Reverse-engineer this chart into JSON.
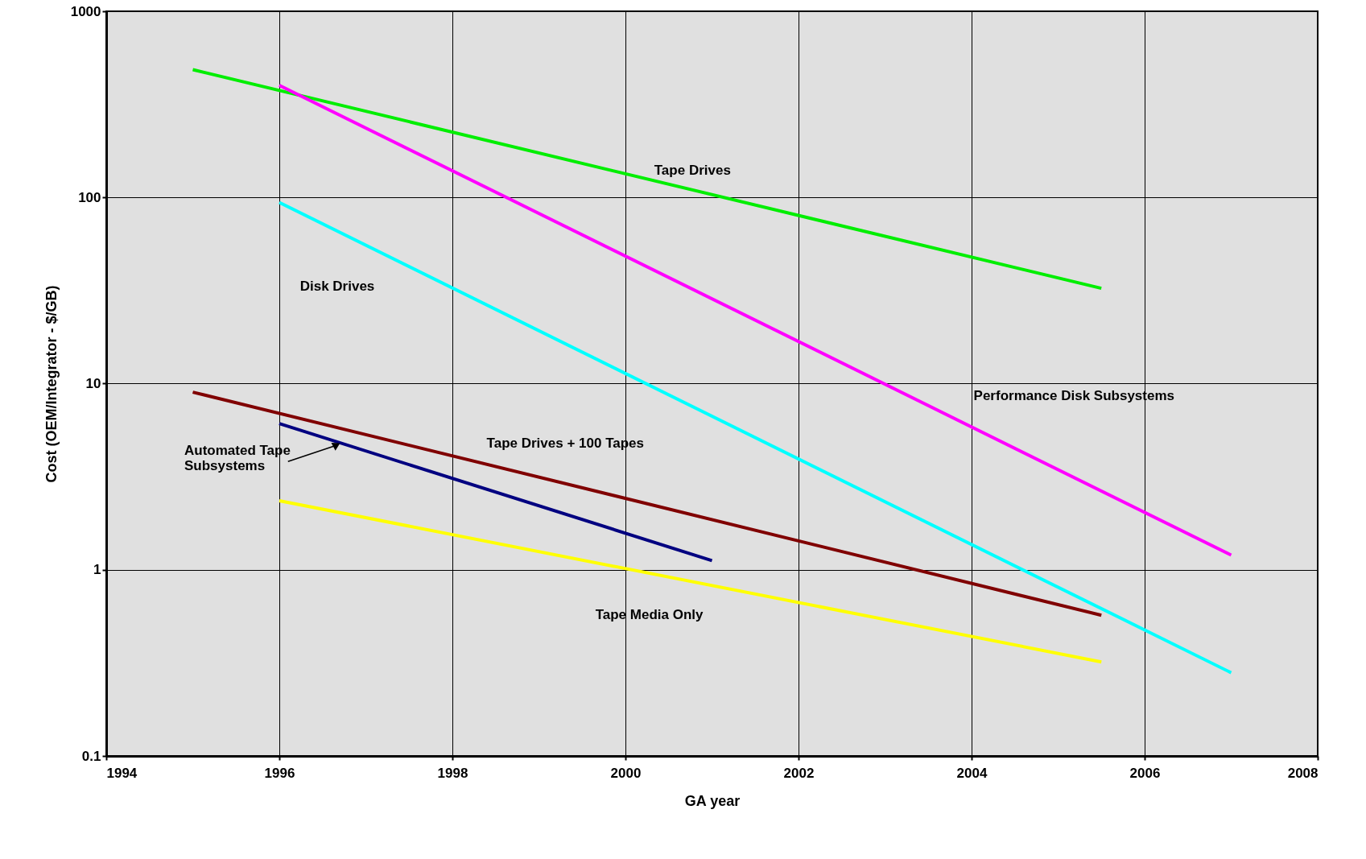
{
  "chart_data": {
    "type": "line",
    "xlabel": "GA year",
    "ylabel": "Cost (OEM/Integrator - $/GB)",
    "log": "y",
    "grid": true,
    "marker": "none",
    "line_style": "solid",
    "xlim": [
      1994,
      2008
    ],
    "xticks": [
      1994,
      1996,
      1998,
      2000,
      2002,
      2004,
      2006,
      2008
    ],
    "ylim": [
      0.1,
      1000
    ],
    "yticks": [
      0.1,
      1,
      10,
      100,
      1000
    ],
    "series": [
      {
        "name": "Tape Drives",
        "color": "#00ee00",
        "x": [
          1995,
          2005.5
        ],
        "values": [
          486,
          32.5
        ]
      },
      {
        "name": "Performance Disk Subsystems",
        "color": "#ff00ff",
        "x": [
          1996,
          2007
        ],
        "values": [
          400,
          1.2
        ]
      },
      {
        "name": "Disk Drives",
        "color": "#00ffff",
        "x": [
          1996,
          2007
        ],
        "values": [
          94,
          0.28
        ]
      },
      {
        "name": "Tape Drives + 100 Tapes",
        "color": "#800000",
        "x": [
          1995,
          2005.5
        ],
        "values": [
          9.0,
          0.57
        ]
      },
      {
        "name": "Automated Tape Subsystems",
        "color": "#000080",
        "x": [
          1996,
          2001
        ],
        "values": [
          6.1,
          1.12
        ]
      },
      {
        "name": "Tape Media Only",
        "color": "#ffff00",
        "x": [
          1996,
          2005.5
        ],
        "values": [
          2.35,
          0.32
        ]
      }
    ]
  }
}
